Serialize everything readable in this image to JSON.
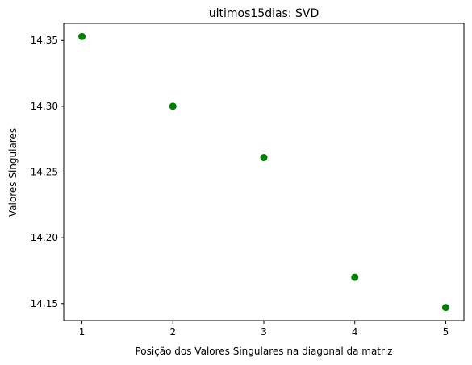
{
  "chart_data": {
    "type": "scatter",
    "title": "ultimos15dias: SVD",
    "xlabel": "Posição dos Valores Singulares na diagonal da matriz",
    "ylabel": "Valores Singulares",
    "x": [
      1,
      2,
      3,
      4,
      5
    ],
    "y": [
      14.353,
      14.3,
      14.261,
      14.17,
      14.147
    ],
    "xlim": [
      0.8,
      5.2
    ],
    "ylim": [
      14.137,
      14.363
    ],
    "xticks": [
      "1",
      "2",
      "3",
      "4",
      "5"
    ],
    "yticks": [
      "14.15",
      "14.20",
      "14.25",
      "14.30",
      "14.35"
    ],
    "grid": false,
    "legend": "none",
    "marker_color": "#008000"
  }
}
